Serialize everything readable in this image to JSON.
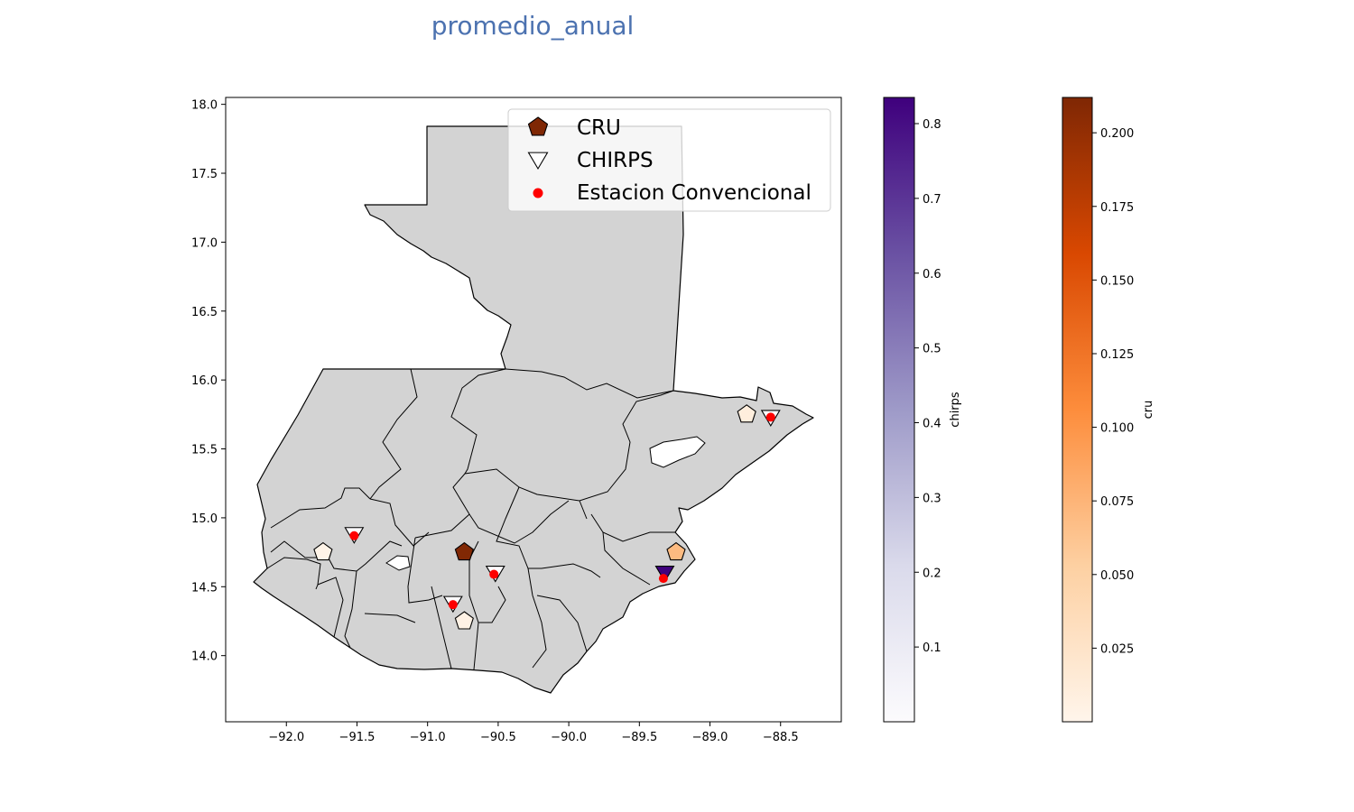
{
  "chart_data": {
    "type": "map",
    "title": "promedio_anual",
    "xlim": [
      -92.43,
      -88.07
    ],
    "ylim": [
      13.52,
      18.05
    ],
    "xticks": [
      -92.0,
      -91.5,
      -91.0,
      -90.5,
      -90.0,
      -89.5,
      -89.0,
      -88.5
    ],
    "xtick_labels": [
      "−92.0",
      "−91.5",
      "−91.0",
      "−90.5",
      "−90.0",
      "−89.5",
      "−89.0",
      "−88.5"
    ],
    "yticks": [
      14.0,
      14.5,
      15.0,
      15.5,
      16.0,
      16.5,
      17.0,
      17.5,
      18.0
    ],
    "ytick_labels": [
      "14.0",
      "14.5",
      "15.0",
      "15.5",
      "16.0",
      "16.5",
      "17.0",
      "17.5",
      "18.0"
    ],
    "legend": {
      "placement": "top-right",
      "entries": [
        {
          "label": "CRU",
          "marker": "pentagon",
          "color": "#7f2704"
        },
        {
          "label": "CHIRPS",
          "marker": "triangle-down",
          "color": "#ffffff"
        },
        {
          "label": "Estacion Convencional",
          "marker": "circle",
          "color": "#ff0000"
        }
      ]
    },
    "map_fill": "#d3d3d3",
    "map_stroke": "#000000",
    "series": [
      {
        "name": "CRU",
        "marker": "pentagon",
        "colormap": "Oranges",
        "points": [
          {
            "lon": -91.74,
            "lat": 14.75,
            "value": 0.002
          },
          {
            "lon": -90.74,
            "lat": 14.75,
            "value": 0.211
          },
          {
            "lon": -90.74,
            "lat": 14.25,
            "value": 0.004
          },
          {
            "lon": -89.24,
            "lat": 14.75,
            "value": 0.07
          },
          {
            "lon": -88.74,
            "lat": 15.75,
            "value": 0.01
          }
        ]
      },
      {
        "name": "CHIRPS",
        "marker": "triangle-down",
        "colormap": "Purples",
        "points": [
          {
            "lon": -91.52,
            "lat": 14.88,
            "value": 0.0
          },
          {
            "lon": -90.82,
            "lat": 14.38,
            "value": 0.0
          },
          {
            "lon": -90.52,
            "lat": 14.6,
            "value": 0.0
          },
          {
            "lon": -89.32,
            "lat": 14.6,
            "value": 0.83
          },
          {
            "lon": -88.57,
            "lat": 15.73,
            "value": 0.0
          }
        ]
      },
      {
        "name": "Estacion Convencional",
        "marker": "circle",
        "color": "#ff0000",
        "points": [
          {
            "lon": -91.52,
            "lat": 14.87
          },
          {
            "lon": -90.82,
            "lat": 14.37
          },
          {
            "lon": -90.53,
            "lat": 14.59
          },
          {
            "lon": -89.33,
            "lat": 14.56
          },
          {
            "lon": -88.57,
            "lat": 15.73
          }
        ]
      }
    ],
    "colorbars": [
      {
        "label": "chirps",
        "colormap": "Purples",
        "range": [
          0.0,
          0.835
        ],
        "ticks": [
          0.1,
          0.2,
          0.3,
          0.4,
          0.5,
          0.6,
          0.7,
          0.8
        ],
        "tick_labels": [
          "0.1",
          "0.2",
          "0.3",
          "0.4",
          "0.5",
          "0.6",
          "0.7",
          "0.8"
        ],
        "colors": [
          "#fcfbfd",
          "#dadaeb",
          "#9e9ac8",
          "#6a51a3",
          "#3f007d"
        ]
      },
      {
        "label": "cru",
        "colormap": "Oranges",
        "range": [
          0.0,
          0.212
        ],
        "ticks": [
          0.025,
          0.05,
          0.075,
          0.1,
          0.125,
          0.15,
          0.175,
          0.2
        ],
        "tick_labels": [
          "0.025",
          "0.050",
          "0.075",
          "0.100",
          "0.125",
          "0.150",
          "0.175",
          "0.200"
        ],
        "colors": [
          "#fff5eb",
          "#fdd0a2",
          "#fd8d3c",
          "#d94801",
          "#7f2704"
        ]
      }
    ]
  }
}
